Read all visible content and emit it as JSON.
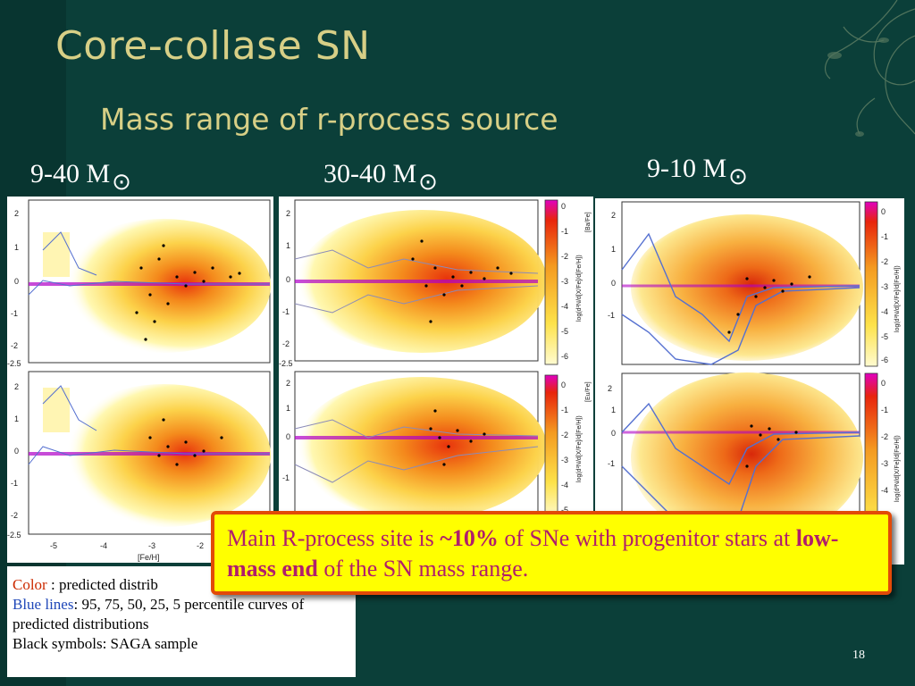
{
  "slide": {
    "title": "Core-collase SN",
    "subtitle": "Mass range of r-process source",
    "page_number": "18"
  },
  "panels": [
    {
      "mass_range": "9-40 M",
      "sun_symbol": "⊙"
    },
    {
      "mass_range": "30-40 M",
      "sun_symbol": "⊙"
    },
    {
      "mass_range": "9-10 M",
      "sun_symbol": "⊙"
    }
  ],
  "plot_labels": {
    "x_axis_label": "[Fe/H]",
    "x_ticks": [
      "-5",
      "-4",
      "-3",
      "-2"
    ],
    "y_ticks": [
      "2",
      "1",
      "0",
      "-1",
      "-2",
      "-2.5"
    ],
    "upper_ylabel": "[Ba/Fe]",
    "lower_ylabel": "[Eu/Fe]",
    "colorbar_upper_label": "log(d²N/d[X/Fe]/d[Fe/H])",
    "colorbar_ticks": [
      "0",
      "-1",
      "-2",
      "-3",
      "-4",
      "-5",
      "-6"
    ]
  },
  "legend": {
    "color_word": "Color",
    "color_text": " : predicted distrib",
    "blue_word": "Blue lines",
    "blue_text": ": 95, 75, 50, 25, 5 percentile curves of predicted distributions",
    "black_text": "Black symbols: SAGA sample"
  },
  "callout": {
    "part1": "Main R-process site is ",
    "part2": "~10%",
    "part3": " of SNe with progenitor stars at ",
    "part4": "low-mass end",
    "part5": " of the SN mass range."
  },
  "colors": {
    "background": "#0b3f39",
    "title": "#d7cf86",
    "callout_text": "#b01e6c",
    "callout_bg": "#ffff00",
    "callout_border": "#e24a08"
  }
}
